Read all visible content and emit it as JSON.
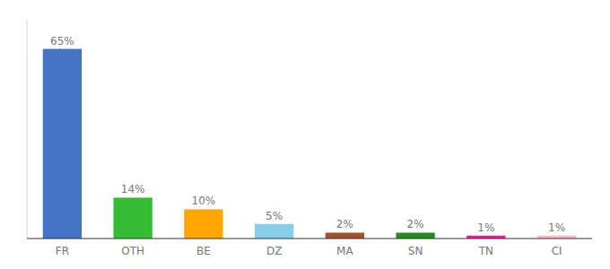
{
  "chart_data": {
    "type": "bar",
    "categories": [
      "FR",
      "OTH",
      "BE",
      "DZ",
      "MA",
      "SN",
      "TN",
      "CI"
    ],
    "values": [
      65,
      14,
      10,
      5,
      2,
      2,
      1,
      1
    ],
    "value_labels": [
      "65%",
      "14%",
      "10%",
      "5%",
      "2%",
      "2%",
      "1%",
      "1%"
    ],
    "colors": [
      "#4472C4",
      "#33BB33",
      "#FFA500",
      "#87CEEB",
      "#A0522D",
      "#228B22",
      "#FF1493",
      "#FFB6C1"
    ],
    "ylim": [
      0,
      75
    ],
    "data_labels": true,
    "tick_labels": "x",
    "grid": false
  }
}
